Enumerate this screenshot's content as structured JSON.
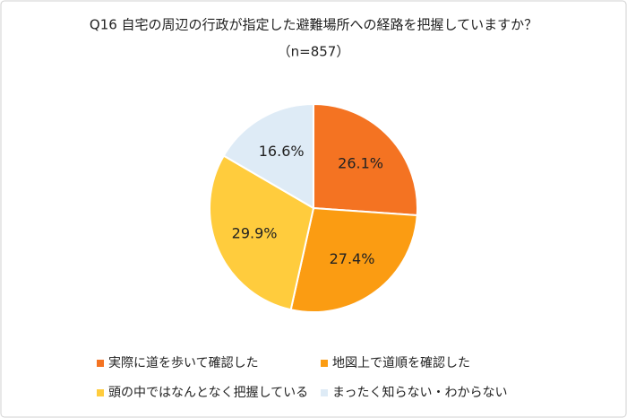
{
  "chart_data": {
    "type": "pie",
    "title": "Q16 自宅の周辺の行政が指定した避難場所への経路を把握していますか？",
    "subtitle": "（n=857）",
    "categories": [
      "実際に道を歩いて確認した",
      "地図上で道順を確認した",
      "頭の中ではなんとなく把握している",
      "まったく知らない・わからない"
    ],
    "values": [
      26.1,
      27.4,
      29.9,
      16.6
    ],
    "value_labels": [
      "26.1%",
      "27.4%",
      "29.9%",
      "16.6%"
    ],
    "colors": [
      "#f47322",
      "#fb9c12",
      "#ffcc3d",
      "#deebf6"
    ],
    "legend": "bottom"
  }
}
